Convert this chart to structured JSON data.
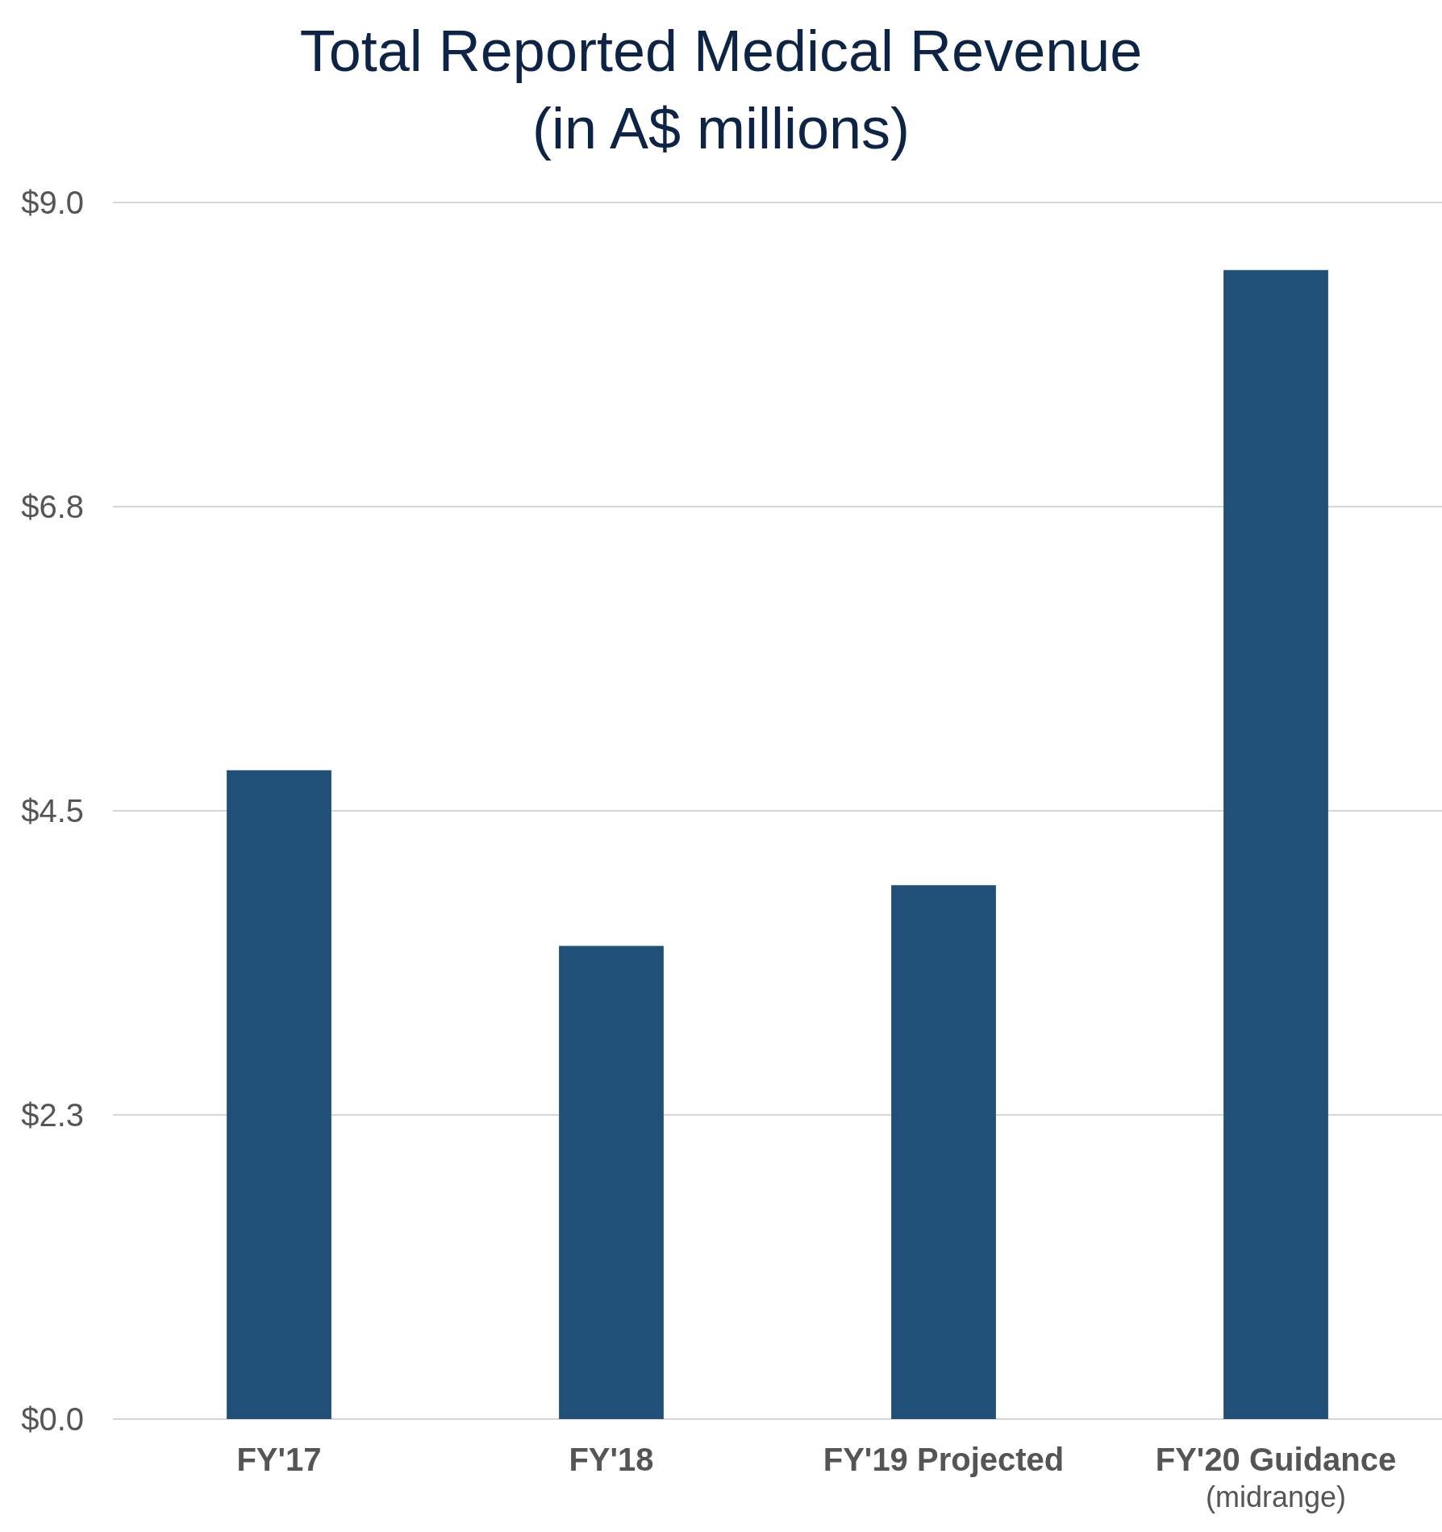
{
  "chart_data": {
    "type": "bar",
    "title": "Total Reported Medical Revenue\n(in A$ millions)",
    "categories": [
      "FY'17",
      "FY'18",
      "FY'19 Projected",
      "FY'20 Guidance\n(midrange)"
    ],
    "values": [
      4.8,
      3.5,
      3.95,
      8.5
    ],
    "color": "#204f78",
    "ylim": [
      0,
      9
    ],
    "yticks": [
      {
        "value": 0,
        "label": "$0.0"
      },
      {
        "value": 2.25,
        "label": "$2.3"
      },
      {
        "value": 4.5,
        "label": "$4.5"
      },
      {
        "value": 6.75,
        "label": "$6.8"
      },
      {
        "value": 9,
        "label": "$9.0"
      }
    ],
    "grid": "y"
  }
}
